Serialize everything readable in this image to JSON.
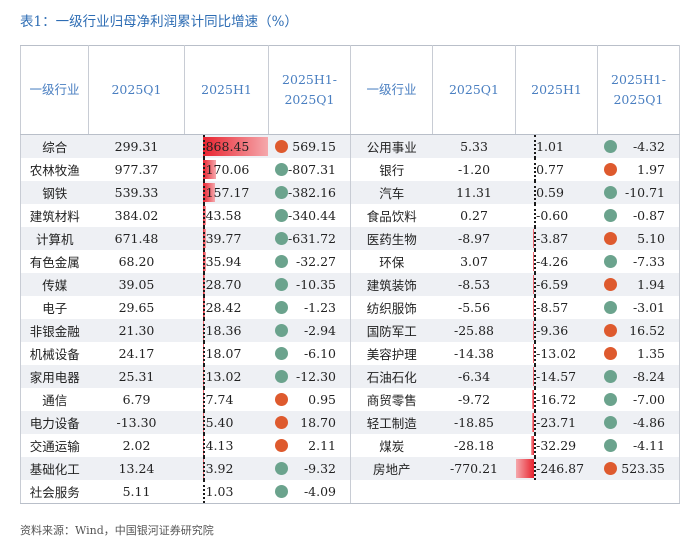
{
  "title": "表1：一级行业归母净利润累计同比增速（%）",
  "headers": {
    "industry": "一级行业",
    "q1": "2025Q1",
    "h1": "2025H1",
    "diff_line1": "2025H1-",
    "diff_line2": "2025Q1"
  },
  "colors": {
    "up": "#de5a2e",
    "down": "#6ba38d",
    "bar": "#e8232f",
    "header_text": "#4a7fc1"
  },
  "left": [
    {
      "name": "综合",
      "q1": "299.31",
      "h1": "868.45",
      "diff": "569.15",
      "dir": "up"
    },
    {
      "name": "农林牧渔",
      "q1": "977.37",
      "h1": "170.06",
      "diff": "-807.31",
      "dir": "down"
    },
    {
      "name": "钢铁",
      "q1": "539.33",
      "h1": "157.17",
      "diff": "-382.16",
      "dir": "down"
    },
    {
      "name": "建筑材料",
      "q1": "384.02",
      "h1": "43.58",
      "diff": "-340.44",
      "dir": "down"
    },
    {
      "name": "计算机",
      "q1": "671.48",
      "h1": "39.77",
      "diff": "-631.72",
      "dir": "down"
    },
    {
      "name": "有色金属",
      "q1": "68.20",
      "h1": "35.94",
      "diff": "-32.27",
      "dir": "down"
    },
    {
      "name": "传媒",
      "q1": "39.05",
      "h1": "28.70",
      "diff": "-10.35",
      "dir": "down"
    },
    {
      "name": "电子",
      "q1": "29.65",
      "h1": "28.42",
      "diff": "-1.23",
      "dir": "down"
    },
    {
      "name": "非银金融",
      "q1": "21.30",
      "h1": "18.36",
      "diff": "-2.94",
      "dir": "down"
    },
    {
      "name": "机械设备",
      "q1": "24.17",
      "h1": "18.07",
      "diff": "-6.10",
      "dir": "down"
    },
    {
      "name": "家用电器",
      "q1": "25.31",
      "h1": "13.02",
      "diff": "-12.30",
      "dir": "down"
    },
    {
      "name": "通信",
      "q1": "6.79",
      "h1": "7.74",
      "diff": "0.95",
      "dir": "up"
    },
    {
      "name": "电力设备",
      "q1": "-13.30",
      "h1": "5.40",
      "diff": "18.70",
      "dir": "up"
    },
    {
      "name": "交通运输",
      "q1": "2.02",
      "h1": "4.13",
      "diff": "2.11",
      "dir": "up"
    },
    {
      "name": "基础化工",
      "q1": "13.24",
      "h1": "3.92",
      "diff": "-9.32",
      "dir": "down"
    },
    {
      "name": "社会服务",
      "q1": "5.11",
      "h1": "1.03",
      "diff": "-4.09",
      "dir": "down"
    }
  ],
  "right": [
    {
      "name": "公用事业",
      "q1": "5.33",
      "h1": "1.01",
      "diff": "-4.32",
      "dir": "down"
    },
    {
      "name": "银行",
      "q1": "-1.20",
      "h1": "0.77",
      "diff": "1.97",
      "dir": "up"
    },
    {
      "name": "汽车",
      "q1": "11.31",
      "h1": "0.59",
      "diff": "-10.71",
      "dir": "down"
    },
    {
      "name": "食品饮料",
      "q1": "0.27",
      "h1": "-0.60",
      "diff": "-0.87",
      "dir": "down"
    },
    {
      "name": "医药生物",
      "q1": "-8.97",
      "h1": "-3.87",
      "diff": "5.10",
      "dir": "up"
    },
    {
      "name": "环保",
      "q1": "3.07",
      "h1": "-4.26",
      "diff": "-7.33",
      "dir": "down"
    },
    {
      "name": "建筑装饰",
      "q1": "-8.53",
      "h1": "-6.59",
      "diff": "1.94",
      "dir": "up"
    },
    {
      "name": "纺织服饰",
      "q1": "-5.56",
      "h1": "-8.57",
      "diff": "-3.01",
      "dir": "down"
    },
    {
      "name": "国防军工",
      "q1": "-25.88",
      "h1": "-9.36",
      "diff": "16.52",
      "dir": "up"
    },
    {
      "name": "美容护理",
      "q1": "-14.38",
      "h1": "-13.02",
      "diff": "1.35",
      "dir": "up"
    },
    {
      "name": "石油石化",
      "q1": "-6.34",
      "h1": "-14.57",
      "diff": "-8.24",
      "dir": "down"
    },
    {
      "name": "商贸零售",
      "q1": "-9.72",
      "h1": "-16.72",
      "diff": "-7.00",
      "dir": "down"
    },
    {
      "name": "轻工制造",
      "q1": "-18.85",
      "h1": "-23.71",
      "diff": "-4.86",
      "dir": "down"
    },
    {
      "name": "煤炭",
      "q1": "-28.18",
      "h1": "-32.29",
      "diff": "-4.11",
      "dir": "down"
    },
    {
      "name": "房地产",
      "q1": "-770.21",
      "h1": "-246.87",
      "diff": "523.35",
      "dir": "up"
    }
  ],
  "source": "资料来源：Wind，中国银河证券研究院"
}
